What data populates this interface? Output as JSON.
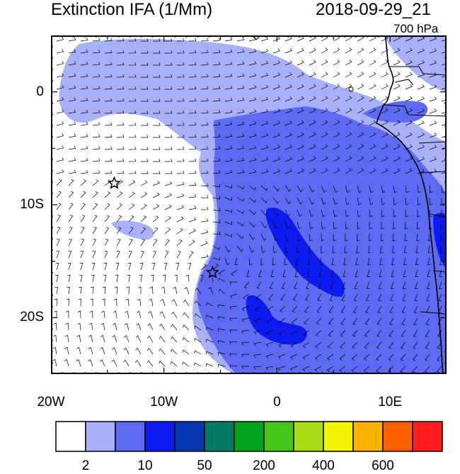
{
  "header": {
    "title": "Extinction IFA (1/Mm)",
    "datetime": "2018-09-29_21",
    "level": "700 hPa"
  },
  "axes": {
    "lon_labels": [
      {
        "text": "20W",
        "lon": -20
      },
      {
        "text": "10W",
        "lon": -10
      },
      {
        "text": "0",
        "lon": 0
      },
      {
        "text": "10E",
        "lon": 10
      }
    ],
    "lat_labels": [
      {
        "text": "0",
        "lat": 0
      },
      {
        "text": "10S",
        "lat": -10
      },
      {
        "text": "20S",
        "lat": -20
      }
    ],
    "lon_range": [
      -20,
      15
    ],
    "lat_range": [
      -25,
      5
    ]
  },
  "colorbar": {
    "colors": [
      "#ffffff",
      "#aab0f7",
      "#5d6af1",
      "#0c1cf0",
      "#0637b0",
      "#007a63",
      "#00a31c",
      "#47c41a",
      "#a9dd16",
      "#f2f300",
      "#fbb100",
      "#ff5f00",
      "#ff1d1d"
    ],
    "labels": [
      {
        "text": "2",
        "boundary": 1
      },
      {
        "text": "10",
        "boundary": 3
      },
      {
        "text": "50",
        "boundary": 5
      },
      {
        "text": "200",
        "boundary": 7
      },
      {
        "text": "400",
        "boundary": 9
      },
      {
        "text": "600",
        "boundary": 11
      }
    ]
  },
  "markers": [
    {
      "name": "star-marker-north",
      "lon": -14.4,
      "lat": -8.1
    },
    {
      "name": "star-marker-south",
      "lon": -5.7,
      "lat": -16.0
    }
  ]
}
